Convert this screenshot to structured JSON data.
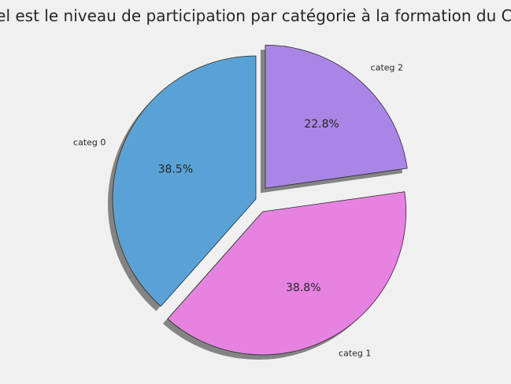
{
  "chart_data": {
    "type": "pie",
    "title": "Quel est le niveau de participation par catégorie à la formation du CA ?",
    "categories": [
      "categ 0",
      "categ 1",
      "categ 2"
    ],
    "values": [
      38.5,
      38.8,
      22.8
    ],
    "value_labels": [
      "38.5%",
      "38.8%",
      "22.8%"
    ],
    "colors": [
      "#5aa2d6",
      "#e683e1",
      "#a986e5"
    ],
    "explode": [
      0,
      0.1,
      0.1
    ],
    "start_angle": 90,
    "direction": "counterclockwise",
    "shadow": true,
    "grid": false,
    "legend": "none"
  }
}
